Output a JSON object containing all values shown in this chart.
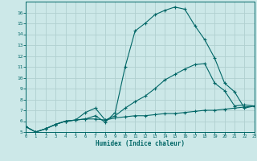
{
  "xlabel": "Humidex (Indice chaleur)",
  "bg_color": "#cce8e8",
  "grid_color": "#b0d0d0",
  "line_color": "#006666",
  "xlim": [
    0,
    23
  ],
  "ylim": [
    5,
    17
  ],
  "x_ticks": [
    0,
    1,
    2,
    3,
    4,
    5,
    6,
    7,
    8,
    9,
    10,
    11,
    12,
    13,
    14,
    15,
    16,
    17,
    18,
    19,
    20,
    21,
    22,
    23
  ],
  "y_ticks": [
    5,
    6,
    7,
    8,
    9,
    10,
    11,
    12,
    13,
    14,
    15,
    16
  ],
  "curve1_x": [
    0,
    1,
    2,
    3,
    4,
    5,
    6,
    7,
    8,
    9,
    10,
    11,
    12,
    13,
    14,
    15,
    16,
    17,
    18,
    19,
    20,
    21,
    22,
    23
  ],
  "curve1_y": [
    5.5,
    5.0,
    5.3,
    5.7,
    6.0,
    6.1,
    6.2,
    6.2,
    6.1,
    6.3,
    6.4,
    6.5,
    6.5,
    6.6,
    6.7,
    6.7,
    6.8,
    6.9,
    7.0,
    7.0,
    7.1,
    7.2,
    7.3,
    7.4
  ],
  "curve2_x": [
    0,
    1,
    2,
    3,
    4,
    5,
    6,
    7,
    8,
    9,
    10,
    11,
    12,
    13,
    14,
    15,
    16,
    17,
    18,
    19,
    20,
    21,
    22,
    23
  ],
  "curve2_y": [
    5.5,
    5.0,
    5.3,
    5.7,
    6.0,
    6.1,
    6.8,
    7.2,
    6.1,
    6.5,
    7.2,
    7.8,
    8.3,
    9.0,
    9.8,
    10.3,
    10.8,
    11.2,
    11.3,
    9.5,
    8.8,
    7.4,
    7.5,
    7.4
  ],
  "curve3_x": [
    0,
    1,
    2,
    3,
    4,
    5,
    6,
    7,
    8,
    9,
    10,
    11,
    12,
    13,
    14,
    15,
    16,
    17,
    18,
    19,
    20,
    21,
    22,
    23
  ],
  "curve3_y": [
    5.5,
    5.0,
    5.3,
    5.7,
    6.0,
    6.1,
    6.2,
    6.5,
    5.9,
    6.8,
    11.0,
    14.3,
    15.0,
    15.8,
    16.2,
    16.5,
    16.3,
    14.8,
    13.5,
    11.8,
    9.5,
    8.7,
    7.2,
    7.4
  ]
}
